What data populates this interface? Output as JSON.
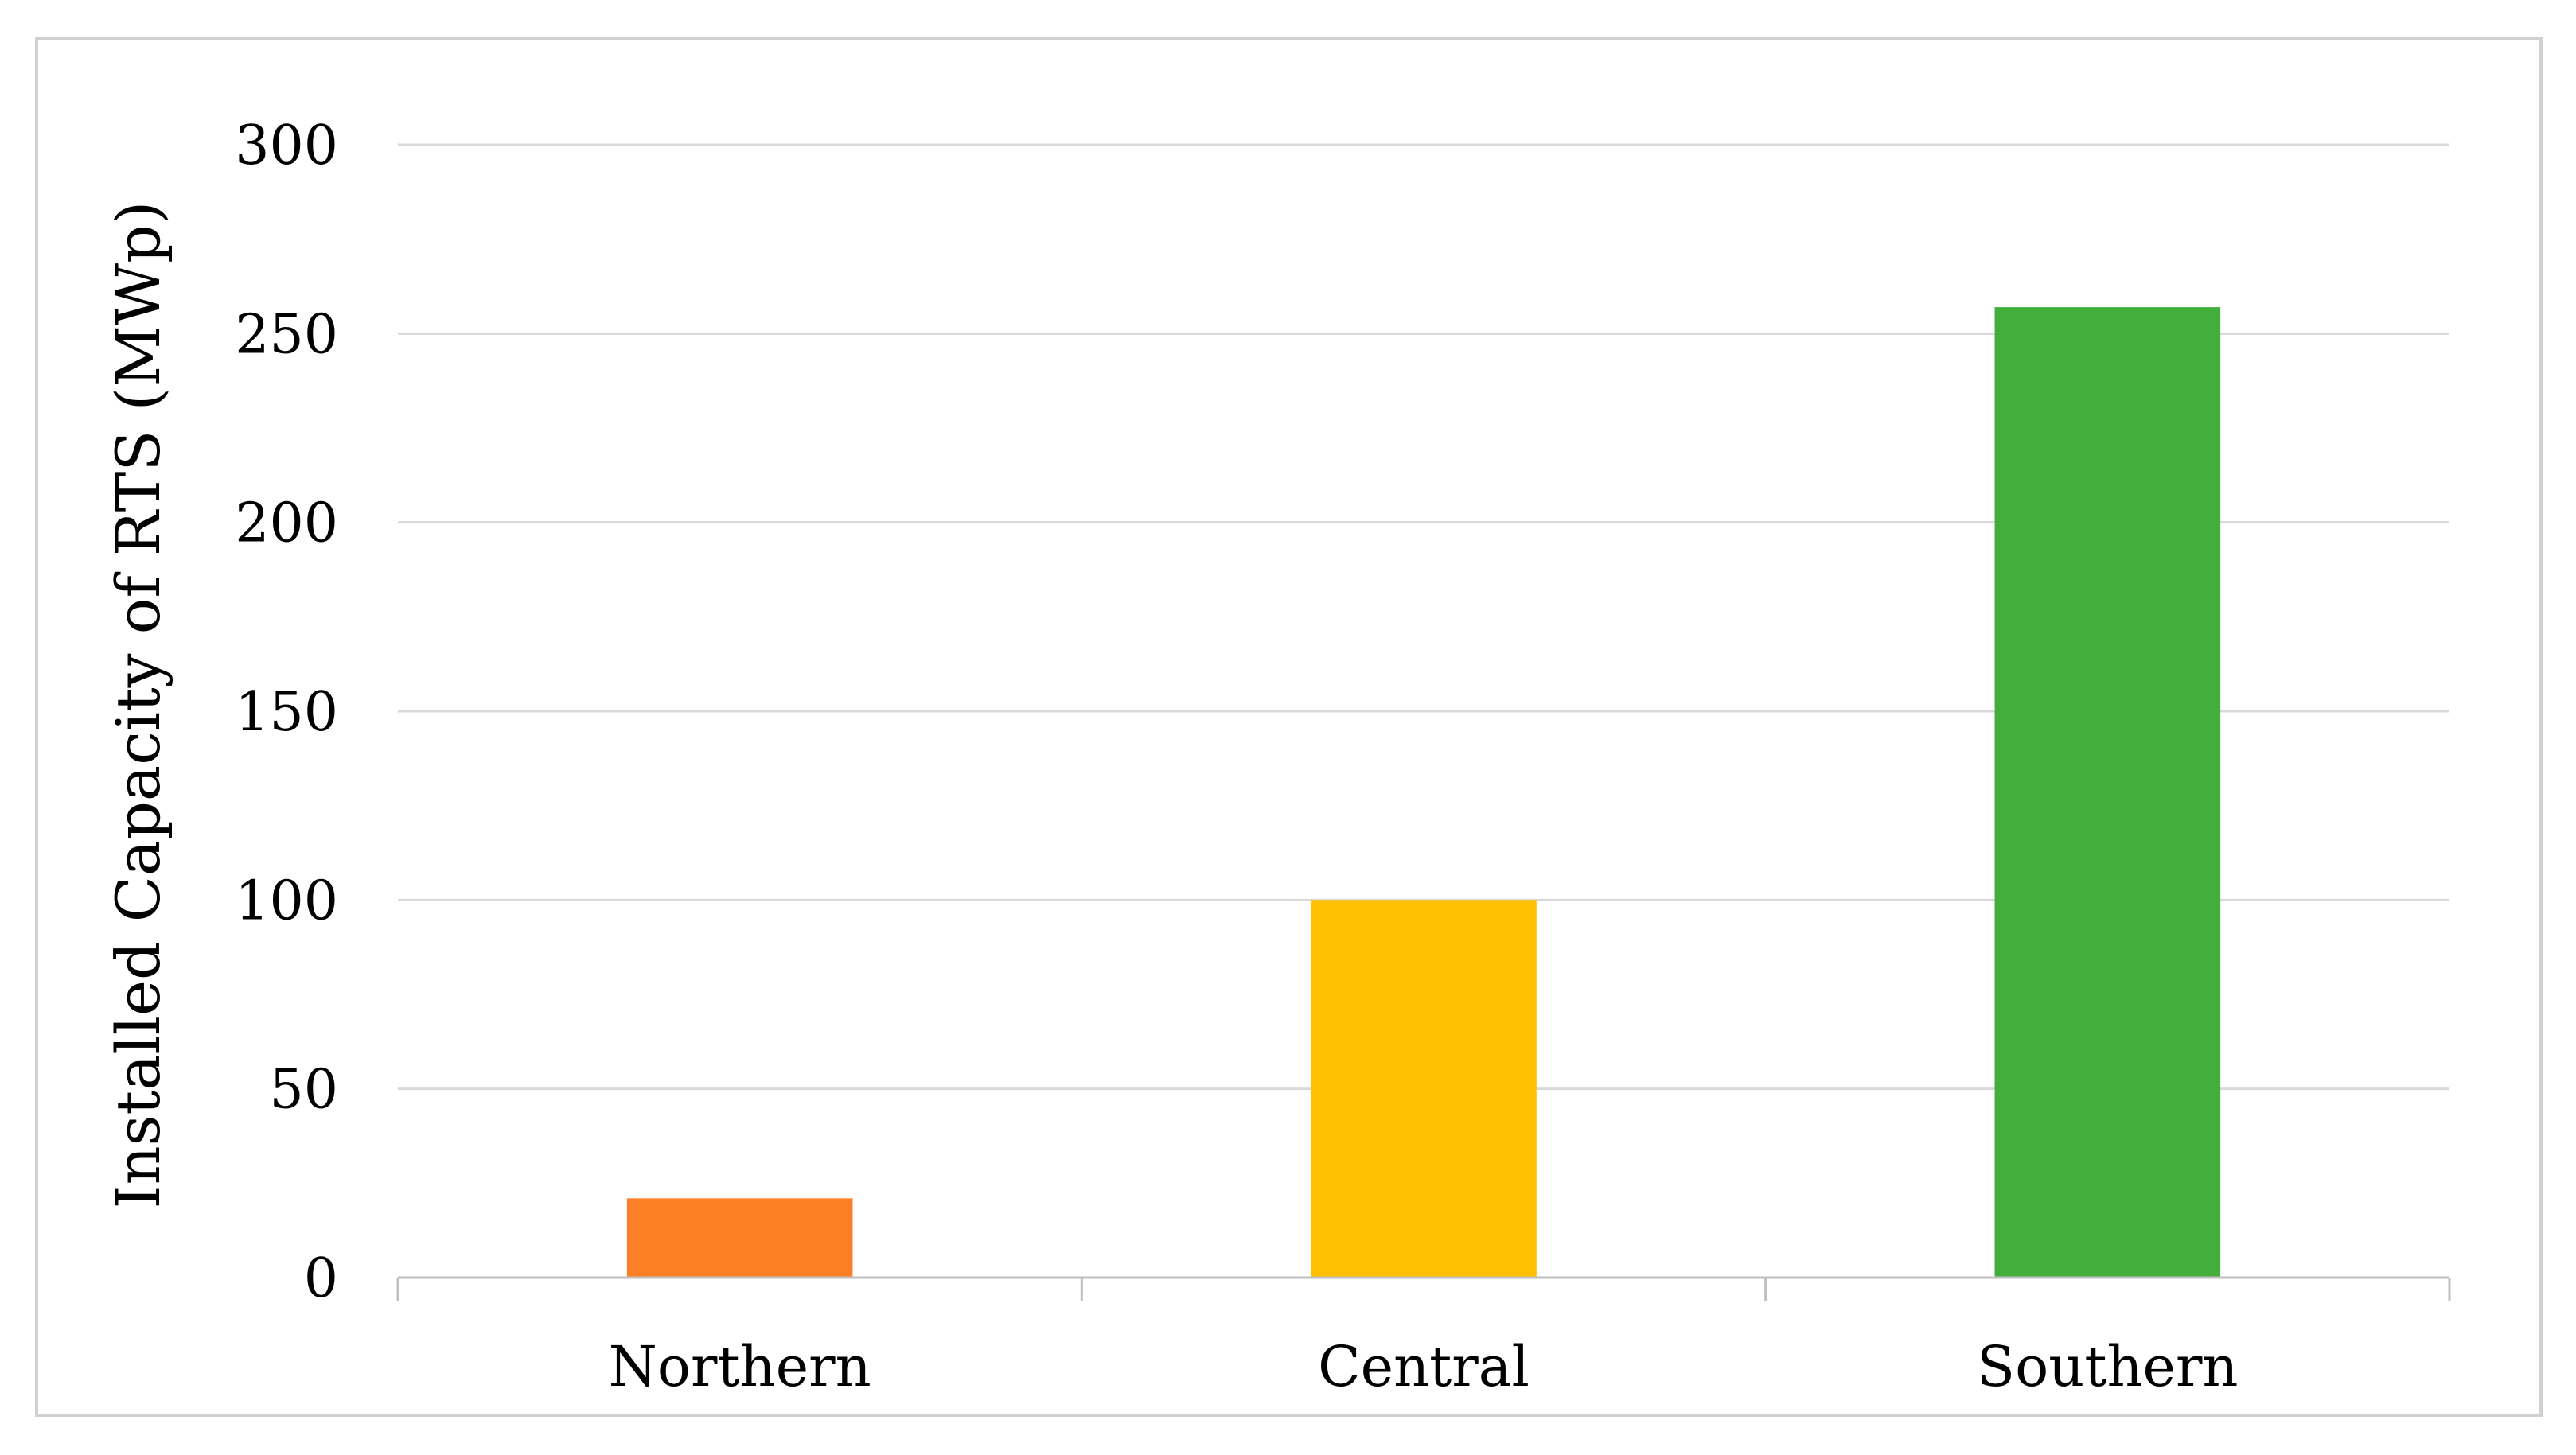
{
  "chart_data": {
    "type": "bar",
    "title": "",
    "xlabel": "",
    "ylabel": "Installed Capacity of RTS (MWp)",
    "categories": [
      "Northern",
      "Central",
      "Southern"
    ],
    "values": [
      21,
      100,
      257
    ],
    "ylim": [
      0,
      300
    ],
    "yticks": [
      0,
      50,
      100,
      150,
      200,
      250,
      300
    ],
    "grid": true,
    "legend": "none",
    "bar_colors": [
      "#FD7F26",
      "#FEC000",
      "#44AE3C"
    ],
    "colors": {
      "gridline": "#D9D9D9",
      "axis": "#BFBFBF",
      "frame": "#D0D0D0",
      "text": "#000000"
    }
  }
}
